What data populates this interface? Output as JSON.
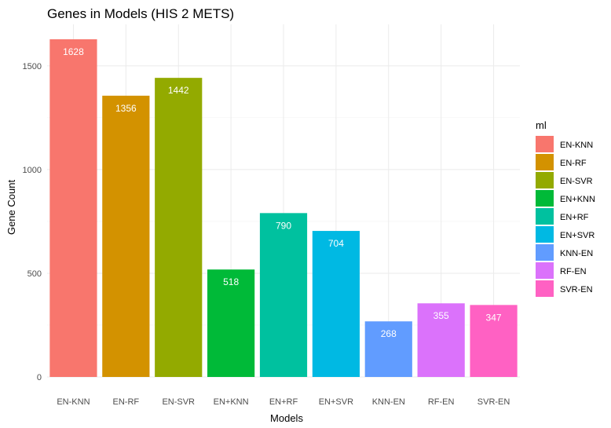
{
  "chart_data": {
    "type": "bar",
    "title": "Genes in Models (HIS 2 METS)",
    "xlabel": "Models",
    "ylabel": "Gene Count",
    "categories": [
      "EN-KNN",
      "EN-RF",
      "EN-SVR",
      "EN+KNN",
      "EN+RF",
      "EN+SVR",
      "KNN-EN",
      "RF-EN",
      "SVR-EN"
    ],
    "values": [
      1628,
      1356,
      1442,
      518,
      790,
      704,
      268,
      355,
      347
    ],
    "data_labels": [
      "1628",
      "1356",
      "1442",
      "518",
      "790",
      "704",
      "268",
      "355",
      "347"
    ],
    "colors": [
      "#F8766D",
      "#D39200",
      "#93AA00",
      "#00BA38",
      "#00C19F",
      "#00B9E3",
      "#619CFF",
      "#DB72FB",
      "#FF61C3"
    ],
    "ylim": [
      0,
      1700
    ],
    "yticks": [
      0,
      500,
      1000,
      1500
    ],
    "ytick_labels": [
      "0",
      "500",
      "1000",
      "1500"
    ],
    "grid": true,
    "theme": "minimal",
    "legend": {
      "title": "ml",
      "position": "right",
      "entries": [
        "EN-KNN",
        "EN-RF",
        "EN-SVR",
        "EN+KNN",
        "EN+RF",
        "EN+SVR",
        "KNN-EN",
        "RF-EN",
        "SVR-EN"
      ]
    }
  }
}
